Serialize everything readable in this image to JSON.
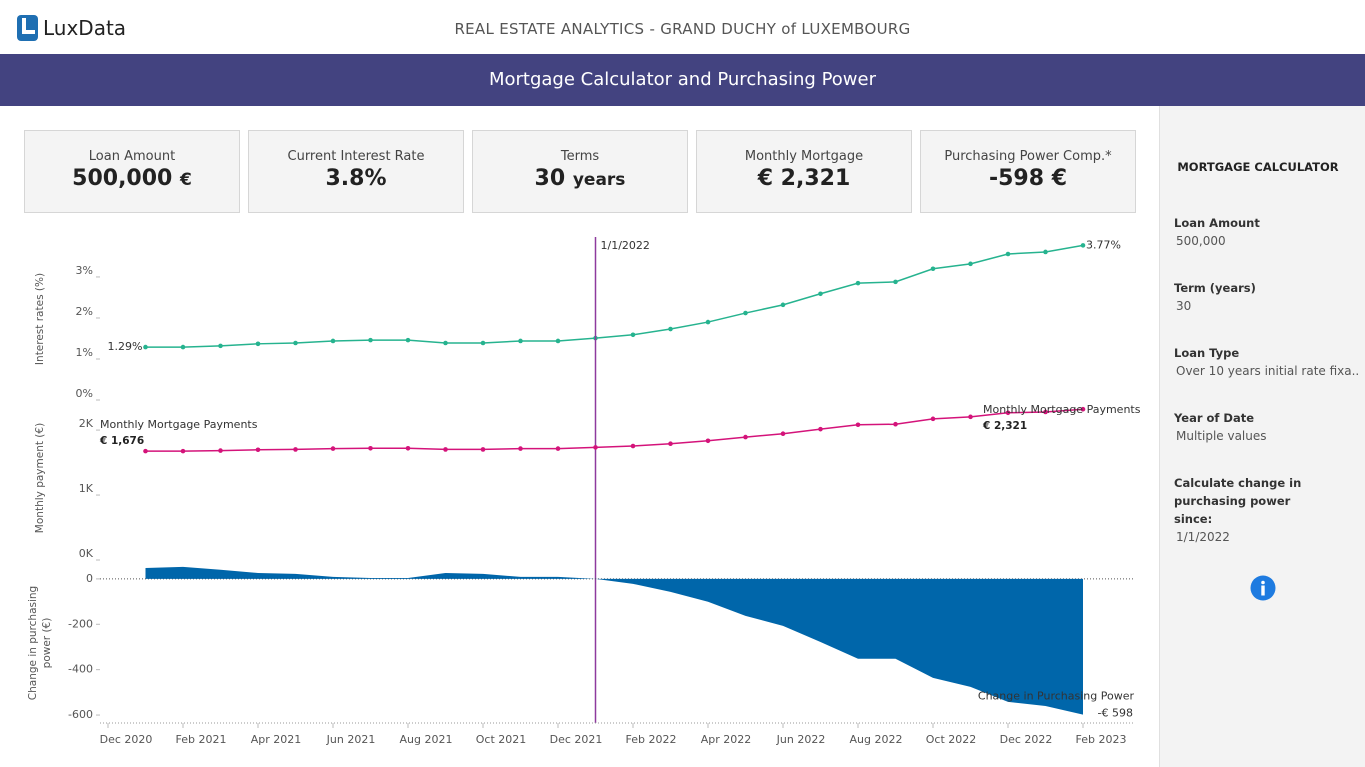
{
  "header": {
    "logo": "LuxData",
    "title": "REAL ESTATE ANALYTICS - GRAND DUCHY of LUXEMBOURG",
    "banner": "Mortgage Calculator and Purchasing Power"
  },
  "kpis": [
    {
      "label": "Loan Amount",
      "value": "500,000",
      "unit": "€"
    },
    {
      "label": "Current Interest Rate",
      "value": "3.8%"
    },
    {
      "label": "Terms",
      "value": "30",
      "unit": "years"
    },
    {
      "label": "Monthly Mortgage",
      "value": "€ 2,321"
    },
    {
      "label": "Purchasing Power Comp.*",
      "value": "-598 €"
    }
  ],
  "sidebar": {
    "title": "MORTGAGE CALCULATOR",
    "fields": [
      {
        "label": "Loan Amount",
        "value": "500,000"
      },
      {
        "label": "Term (years)",
        "value": "30"
      },
      {
        "label": "Loan Type",
        "value": "Over 10 years initial rate fixa.."
      },
      {
        "label": "Year of Date",
        "value": "Multiple values"
      },
      {
        "label": "Calculate change in purchasing power since:",
        "value": "1/1/2022"
      }
    ]
  },
  "chart_data": [
    {
      "type": "line",
      "y_label": "Interest rates (%)",
      "x": [
        "2021-01",
        "2021-02",
        "2021-03",
        "2021-04",
        "2021-05",
        "2021-06",
        "2021-07",
        "2021-08",
        "2021-09",
        "2021-10",
        "2021-11",
        "2021-12",
        "2022-01",
        "2022-02",
        "2022-03",
        "2022-04",
        "2022-05",
        "2022-06",
        "2022-07",
        "2022-08",
        "2022-09",
        "2022-10",
        "2022-11",
        "2022-12",
        "2023-01",
        "2023-02"
      ],
      "xlim": [
        "2020-12",
        "2023-03"
      ],
      "ylim": [
        0,
        3.95
      ],
      "yticks": [
        {
          "value": 0,
          "label": "0%"
        },
        {
          "value": 1,
          "label": "1%"
        },
        {
          "value": 2,
          "label": "2%"
        },
        {
          "value": 3,
          "label": "3%"
        }
      ],
      "reference_line": {
        "x": "2022-01",
        "label": "1/1/2022"
      },
      "series": [
        {
          "color": "#26b38f",
          "values": [
            1.29,
            1.29,
            1.32,
            1.37,
            1.39,
            1.44,
            1.46,
            1.46,
            1.39,
            1.39,
            1.44,
            1.44,
            1.51,
            1.59,
            1.73,
            1.9,
            2.12,
            2.32,
            2.59,
            2.85,
            2.88,
            3.2,
            3.32,
            3.56,
            3.61,
            3.77
          ],
          "value_labels": [
            "1.29%",
            null,
            null,
            null,
            null,
            null,
            null,
            null,
            null,
            null,
            null,
            null,
            null,
            null,
            null,
            null,
            null,
            null,
            null,
            null,
            null,
            null,
            null,
            null,
            null,
            "3.77%"
          ]
        }
      ]
    },
    {
      "type": "line",
      "y_label": "Monthly payment (€)",
      "x": [
        "2021-01",
        "2021-02",
        "2021-03",
        "2021-04",
        "2021-05",
        "2021-06",
        "2021-07",
        "2021-08",
        "2021-09",
        "2021-10",
        "2021-11",
        "2021-12",
        "2022-01",
        "2022-02",
        "2022-03",
        "2022-04",
        "2022-05",
        "2022-06",
        "2022-07",
        "2022-08",
        "2022-09",
        "2022-10",
        "2022-11",
        "2022-12",
        "2023-01",
        "2023-02"
      ],
      "xlim": [
        "2020-12",
        "2023-03"
      ],
      "ylim": [
        0,
        2540
      ],
      "yticks": [
        {
          "value": 0,
          "label": "0K"
        },
        {
          "value": 1000,
          "label": "1K"
        },
        {
          "value": 2000,
          "label": "2K"
        }
      ],
      "series": [
        {
          "name": "Monthly Mortgage Payments",
          "color": "#d4137a",
          "values": [
            1676,
            1676,
            1684,
            1697,
            1702,
            1715,
            1720,
            1720,
            1702,
            1702,
            1715,
            1715,
            1733,
            1754,
            1790,
            1835,
            1892,
            1944,
            2014,
            2082,
            2090,
            2173,
            2204,
            2266,
            2279,
            2321
          ],
          "value_labels": [
            "€ 1,676",
            null,
            null,
            null,
            null,
            null,
            null,
            null,
            null,
            null,
            null,
            null,
            null,
            null,
            null,
            null,
            null,
            null,
            null,
            null,
            null,
            null,
            null,
            null,
            null,
            "€ 2,321"
          ]
        }
      ]
    },
    {
      "type": "area",
      "y_label": "Change in purchasing power (€)",
      "x": [
        "2021-01",
        "2021-02",
        "2021-03",
        "2021-04",
        "2021-05",
        "2021-06",
        "2021-07",
        "2021-08",
        "2021-09",
        "2021-10",
        "2021-11",
        "2021-12",
        "2022-01",
        "2022-02",
        "2022-03",
        "2022-04",
        "2022-05",
        "2022-06",
        "2022-07",
        "2022-08",
        "2022-09",
        "2022-10",
        "2022-11",
        "2022-12",
        "2023-01",
        "2023-02"
      ],
      "xlim": [
        "2020-12",
        "2023-03"
      ],
      "ylim": [
        -635,
        70
      ],
      "yticks": [
        0,
        -200,
        -400,
        -600
      ],
      "xticks": [
        {
          "value": "2020-12",
          "label": "Dec 2020"
        },
        {
          "value": "2021-02",
          "label": "Feb 2021"
        },
        {
          "value": "2021-04",
          "label": "Apr 2021"
        },
        {
          "value": "2021-06",
          "label": "Jun 2021"
        },
        {
          "value": "2021-08",
          "label": "Aug 2021"
        },
        {
          "value": "2021-10",
          "label": "Oct 2021"
        },
        {
          "value": "2021-12",
          "label": "Dec 2021"
        },
        {
          "value": "2022-02",
          "label": "Feb 2022"
        },
        {
          "value": "2022-04",
          "label": "Apr 2022"
        },
        {
          "value": "2022-06",
          "label": "Jun 2022"
        },
        {
          "value": "2022-08",
          "label": "Aug 2022"
        },
        {
          "value": "2022-10",
          "label": "Oct 2022"
        },
        {
          "value": "2022-12",
          "label": "Dec 2022"
        },
        {
          "value": "2023-02",
          "label": "Feb 2023"
        }
      ],
      "series": [
        {
          "name": "Change in Purchasing Power",
          "color": "#0066aa",
          "values": [
            48,
            53,
            40,
            26,
            22,
            9,
            4,
            4,
            26,
            22,
            9,
            9,
            0,
            -22,
            -57,
            -101,
            -163,
            -207,
            -278,
            -352,
            -352,
            -436,
            -476,
            -542,
            -560,
            -598
          ],
          "value_labels": [
            null,
            null,
            null,
            null,
            null,
            null,
            null,
            null,
            null,
            null,
            null,
            null,
            null,
            null,
            null,
            null,
            null,
            null,
            null,
            null,
            null,
            null,
            null,
            null,
            null,
            "-€ 598"
          ]
        }
      ]
    }
  ]
}
